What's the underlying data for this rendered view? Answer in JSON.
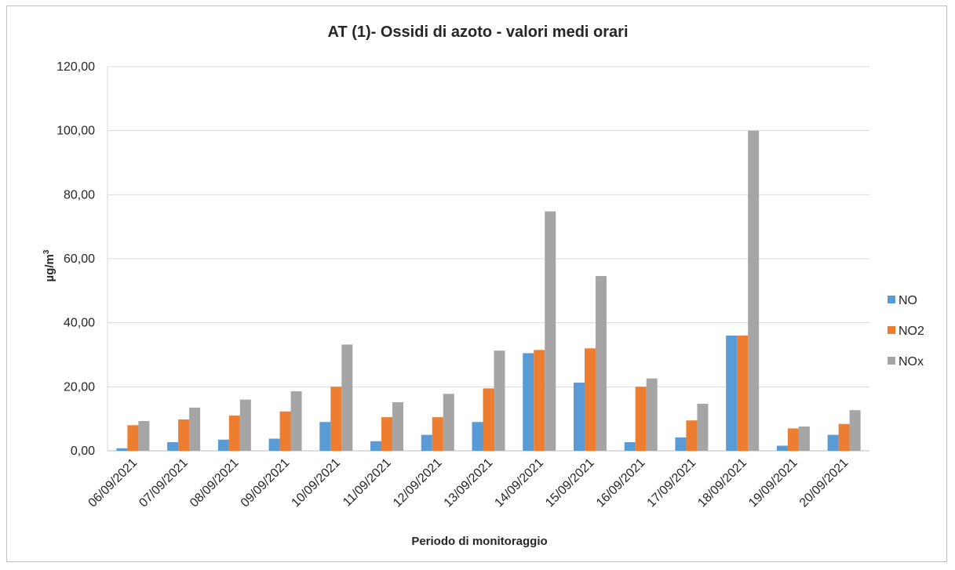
{
  "chart_data": {
    "type": "bar",
    "title": "AT (1)- Ossidi di azoto - valori medi orari",
    "xlabel": "Periodo di monitoraggio",
    "ylabel_main": "µg/m",
    "ylabel_sup": "3",
    "ylim": [
      0,
      120
    ],
    "yticks": [
      "0,00",
      "20,00",
      "40,00",
      "60,00",
      "80,00",
      "100,00",
      "120,00"
    ],
    "ytick_values": [
      0,
      20,
      40,
      60,
      80,
      100,
      120
    ],
    "grid": true,
    "legend_position": "right",
    "categories": [
      "06/09/2021",
      "07/09/2021",
      "08/09/2021",
      "09/09/2021",
      "10/09/2021",
      "11/09/2021",
      "12/09/2021",
      "13/09/2021",
      "14/09/2021",
      "15/09/2021",
      "16/09/2021",
      "17/09/2021",
      "18/09/2021",
      "19/09/2021",
      "20/09/2021"
    ],
    "series": [
      {
        "name": "NO",
        "color": "#5b9bd5",
        "values": [
          0.8,
          2.7,
          3.5,
          3.8,
          9.0,
          3.0,
          5.0,
          9.0,
          30.5,
          21.3,
          2.7,
          4.2,
          36.0,
          1.6,
          5.0
        ]
      },
      {
        "name": "NO2",
        "color": "#ed7d31",
        "values": [
          8.0,
          9.8,
          11.0,
          12.3,
          20.0,
          10.5,
          10.5,
          19.5,
          31.5,
          32.0,
          20.0,
          9.5,
          36.0,
          7.0,
          8.4
        ]
      },
      {
        "name": "NOx",
        "color": "#a5a5a5",
        "values": [
          9.3,
          13.5,
          16.0,
          18.6,
          33.2,
          15.2,
          17.8,
          31.3,
          74.8,
          54.6,
          22.6,
          14.7,
          100.0,
          7.6,
          12.7
        ]
      }
    ]
  }
}
